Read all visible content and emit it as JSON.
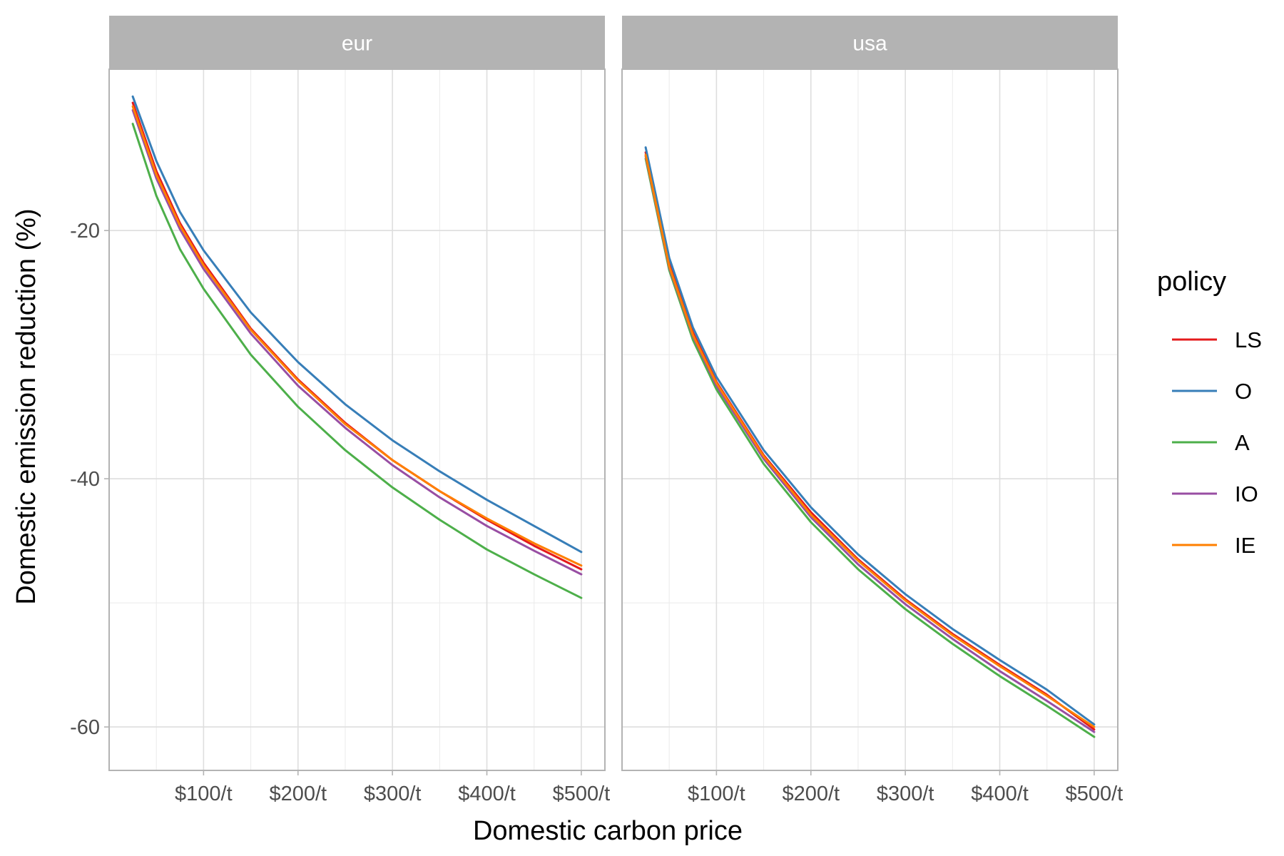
{
  "chart_data": {
    "type": "line",
    "xlabel": "Domestic carbon price",
    "ylabel": "Domestic emission reduction (%)",
    "xlim": [
      0,
      525
    ],
    "ylim": [
      -63.5,
      -7
    ],
    "x_ticks": [
      100,
      200,
      300,
      400,
      500
    ],
    "x_tick_labels": [
      "$100/t",
      "$200/t",
      "$300/t",
      "$400/t",
      "$500/t"
    ],
    "x_minor_ticks": [
      50,
      150,
      250,
      350,
      450
    ],
    "y_ticks": [
      -20,
      -40,
      -60
    ],
    "y_tick_labels": [
      "-20",
      "-40",
      "-60"
    ],
    "y_minor_ticks": [
      -30,
      -50
    ],
    "grid": true,
    "legend": {
      "title": "policy",
      "position": "right",
      "entries": [
        {
          "name": "LS",
          "color": "#E41A1C"
        },
        {
          "name": "O",
          "color": "#377EB8"
        },
        {
          "name": "A",
          "color": "#4DAF4A"
        },
        {
          "name": "IO",
          "color": "#984EA3"
        },
        {
          "name": "IE",
          "color": "#FF7F00"
        }
      ]
    },
    "x": [
      25,
      50,
      75,
      100,
      150,
      200,
      250,
      300,
      350,
      400,
      450,
      500
    ],
    "panels": [
      {
        "strip": "eur",
        "series": [
          {
            "name": "LS",
            "color": "#E41A1C",
            "values": [
              -9.7,
              -15.2,
              -19.4,
              -22.6,
              -27.9,
              -32.0,
              -35.5,
              -38.5,
              -41.0,
              -43.3,
              -45.4,
              -47.3
            ]
          },
          {
            "name": "O",
            "color": "#377EB8",
            "values": [
              -9.2,
              -14.4,
              -18.5,
              -21.6,
              -26.6,
              -30.6,
              -34.0,
              -36.9,
              -39.4,
              -41.7,
              -43.8,
              -45.9
            ]
          },
          {
            "name": "A",
            "color": "#4DAF4A",
            "values": [
              -11.4,
              -17.2,
              -21.5,
              -24.7,
              -30.0,
              -34.2,
              -37.7,
              -40.7,
              -43.3,
              -45.7,
              -47.7,
              -49.6
            ]
          },
          {
            "name": "IO",
            "color": "#984EA3",
            "values": [
              -10.3,
              -15.8,
              -19.9,
              -23.1,
              -28.3,
              -32.5,
              -35.9,
              -38.9,
              -41.5,
              -43.8,
              -45.8,
              -47.7
            ]
          },
          {
            "name": "IE",
            "color": "#FF7F00",
            "values": [
              -10.0,
              -15.5,
              -19.6,
              -22.8,
              -28.0,
              -32.1,
              -35.6,
              -38.5,
              -41.0,
              -43.2,
              -45.2,
              -47.0
            ]
          }
        ]
      },
      {
        "strip": "usa",
        "series": [
          {
            "name": "LS",
            "color": "#E41A1C",
            "values": [
              -13.7,
              -22.6,
              -28.2,
              -32.2,
              -38.1,
              -42.7,
              -46.5,
              -49.7,
              -52.5,
              -55.0,
              -57.4,
              -60.2
            ]
          },
          {
            "name": "O",
            "color": "#377EB8",
            "values": [
              -13.3,
              -22.2,
              -27.8,
              -31.8,
              -37.7,
              -42.3,
              -46.1,
              -49.3,
              -52.1,
              -54.6,
              -57.0,
              -59.8
            ]
          },
          {
            "name": "A",
            "color": "#4DAF4A",
            "values": [
              -14.2,
              -23.2,
              -28.8,
              -32.8,
              -38.8,
              -43.5,
              -47.3,
              -50.5,
              -53.3,
              -55.9,
              -58.3,
              -60.8
            ]
          },
          {
            "name": "IO",
            "color": "#984EA3",
            "values": [
              -14.0,
              -23.0,
              -28.5,
              -32.5,
              -38.4,
              -43.1,
              -46.9,
              -50.1,
              -52.9,
              -55.5,
              -57.9,
              -60.4
            ]
          },
          {
            "name": "IE",
            "color": "#FF7F00",
            "values": [
              -13.9,
              -22.9,
              -28.4,
              -32.3,
              -38.2,
              -42.9,
              -46.6,
              -49.8,
              -52.6,
              -55.1,
              -57.5,
              -60.0
            ]
          }
        ]
      }
    ]
  }
}
